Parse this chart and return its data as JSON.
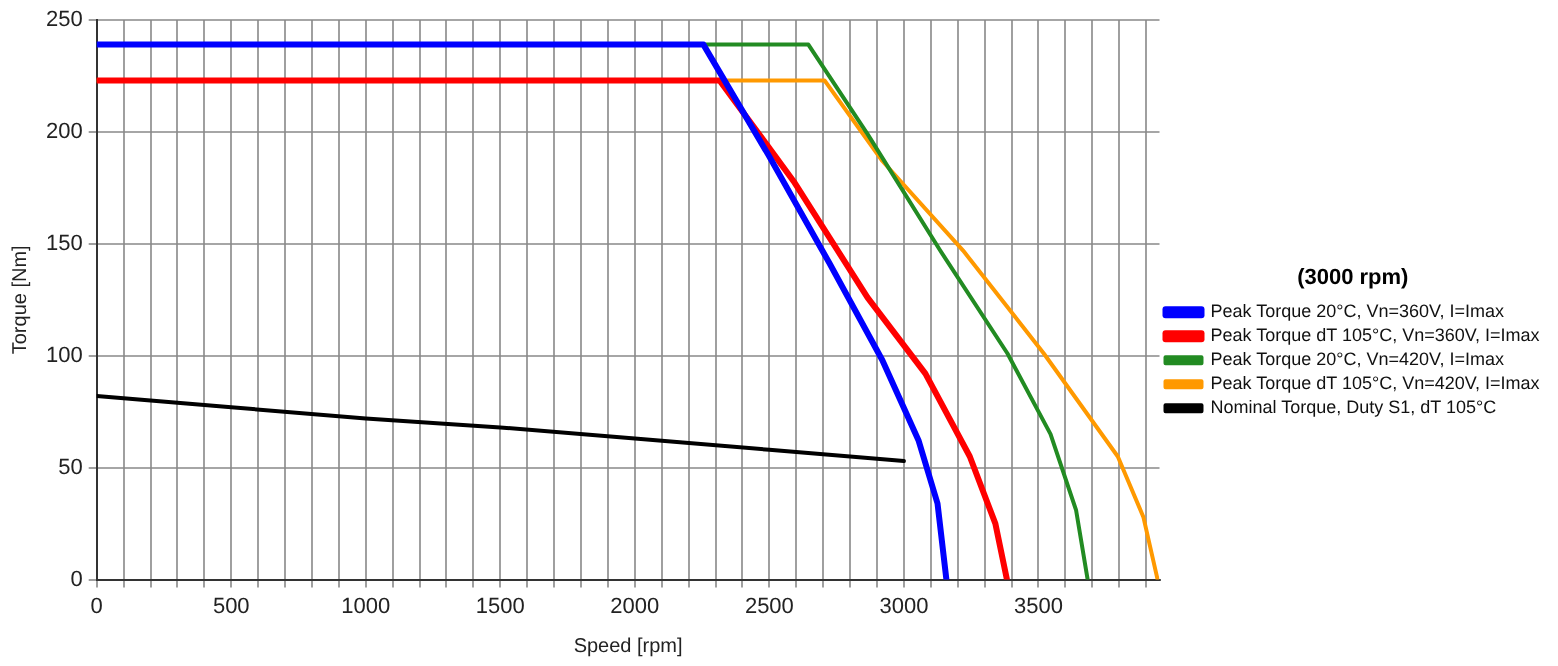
{
  "chart_data": {
    "type": "line",
    "xlabel": "Speed [rpm]",
    "ylabel": "Torque [Nm]",
    "legend_title": "(3000 rpm)",
    "legend": "right",
    "grid": true,
    "marker": "none",
    "line_style": "solid",
    "xlim": [
      0,
      3950
    ],
    "ylim": [
      0,
      250
    ],
    "xticks": [
      0,
      {
        "value": 100,
        "label": null
      },
      {
        "value": 200,
        "label": null
      },
      {
        "value": 300,
        "label": null
      },
      {
        "value": 400,
        "label": null
      },
      500,
      {
        "value": 600,
        "label": null
      },
      {
        "value": 700,
        "label": null
      },
      {
        "value": 800,
        "label": null
      },
      {
        "value": 900,
        "label": null
      },
      1000,
      {
        "value": 1100,
        "label": null
      },
      {
        "value": 1200,
        "label": null
      },
      {
        "value": 1300,
        "label": null
      },
      {
        "value": 1400,
        "label": null
      },
      1500,
      {
        "value": 1600,
        "label": null
      },
      {
        "value": 1700,
        "label": null
      },
      {
        "value": 1800,
        "label": null
      },
      {
        "value": 1900,
        "label": null
      },
      2000,
      {
        "value": 2100,
        "label": null
      },
      {
        "value": 2200,
        "label": null
      },
      {
        "value": 2300,
        "label": null
      },
      {
        "value": 2400,
        "label": null
      },
      2500,
      {
        "value": 2600,
        "label": null
      },
      {
        "value": 2700,
        "label": null
      },
      {
        "value": 2800,
        "label": null
      },
      {
        "value": 2900,
        "label": null
      },
      3000,
      {
        "value": 3100,
        "label": null
      },
      {
        "value": 3200,
        "label": null
      },
      {
        "value": 3300,
        "label": null
      },
      {
        "value": 3400,
        "label": null
      },
      3500,
      {
        "value": 3600,
        "label": null
      },
      {
        "value": 3700,
        "label": null
      },
      {
        "value": 3800,
        "label": null
      },
      {
        "value": 3900,
        "label": null
      }
    ],
    "yticks": [
      0,
      50,
      100,
      150,
      200,
      250
    ],
    "series": [
      {
        "name": "Peak Torque 20°C, Vn=360V, I=Imax",
        "color": "#0000ff",
        "x": [
          0,
          2255,
          2495,
          2725,
          2920,
          3055,
          3125,
          3158
        ],
        "values": [
          239,
          239,
          190,
          141,
          98,
          62,
          34,
          0
        ]
      },
      {
        "name": "Peak Torque dT 105°C, Vn=360V, I=Imax",
        "color": "#ff0000",
        "x": [
          0,
          2315,
          2590,
          2865,
          3080,
          3245,
          3340,
          3383
        ],
        "values": [
          223,
          223,
          178,
          126,
          92,
          55,
          25,
          0
        ]
      },
      {
        "name": "Peak Torque 20°C, Vn=420V, I=Imax",
        "color": "#228b22",
        "x": [
          0,
          2645,
          2865,
          3135,
          3385,
          3545,
          3640,
          3683
        ],
        "values": [
          239,
          239,
          199,
          147,
          101,
          65,
          31,
          0
        ]
      },
      {
        "name": "Peak Torque dT 105°C, Vn=420V, I=Imax",
        "color": "#ff9900",
        "x": [
          0,
          2705,
          2920,
          3220,
          3520,
          3795,
          3890,
          3943
        ],
        "values": [
          223,
          223,
          187,
          147,
          101,
          55,
          28,
          0
        ]
      },
      {
        "name": "Nominal Torque, Duty S1, dT 105°C",
        "color": "#000000",
        "x": [
          0,
          500,
          1000,
          1500,
          2000,
          2500,
          3000
        ],
        "values": [
          82,
          77,
          72,
          68,
          63,
          58,
          53
        ]
      }
    ]
  }
}
